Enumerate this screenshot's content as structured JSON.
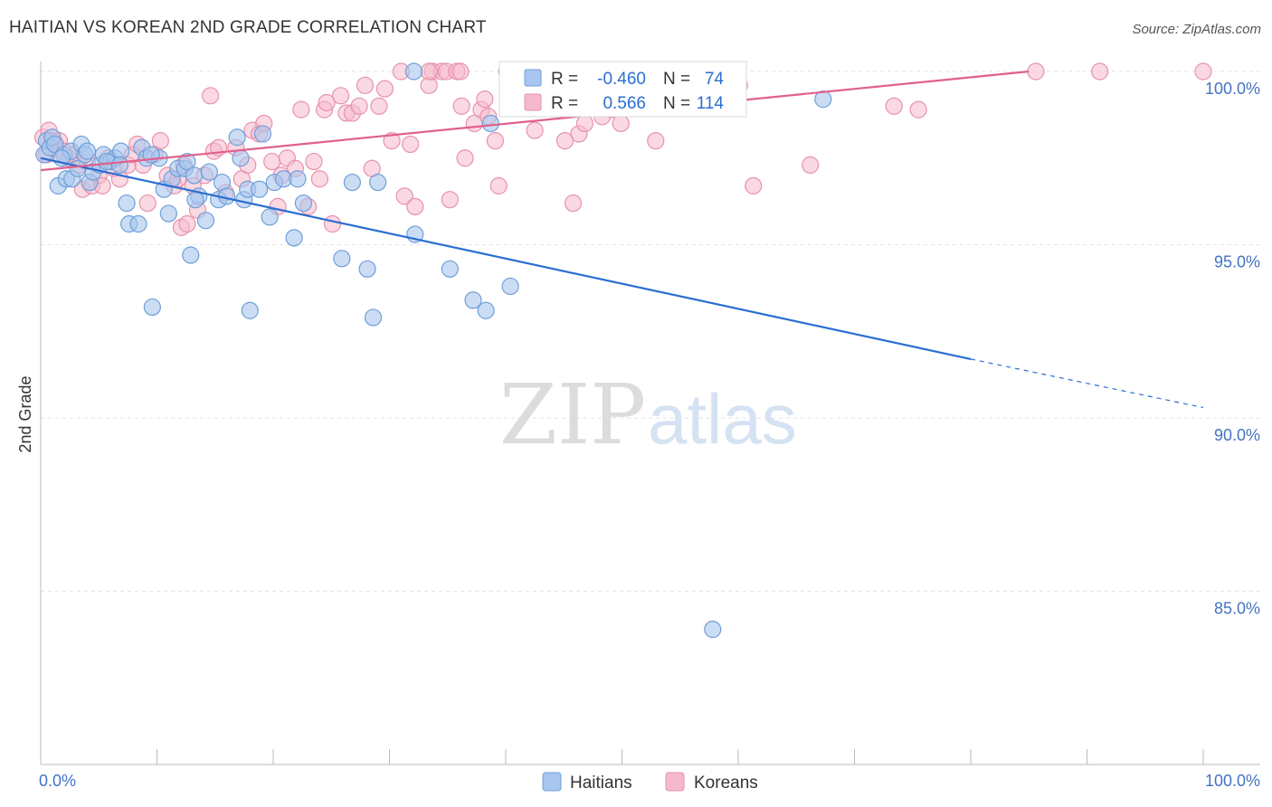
{
  "title": "HAITIAN VS KOREAN 2ND GRADE CORRELATION CHART",
  "source": "Source: ZipAtlas.com",
  "watermark": {
    "part1": "ZIP",
    "part2": "atlas"
  },
  "colors": {
    "haitian_fill": "#a8c6ef",
    "haitian_stroke": "#6f9fd8",
    "haitian_line": "#2a6fd1",
    "korean_fill": "#f6b9cc",
    "korean_stroke": "#e792ad",
    "korean_line": "#e0608d",
    "value_blue": "#2a6fd1",
    "grid": "#e2e2e2"
  },
  "legend_box": {
    "rows": [
      {
        "r_label": "R =",
        "r_value": "-0.460",
        "n_label": "N =",
        "n_value": "74"
      },
      {
        "r_label": "R =",
        "r_value": "0.566",
        "n_label": "N =",
        "n_value": "114"
      }
    ]
  },
  "bottom_legend": {
    "items": [
      "Haitians",
      "Koreans"
    ]
  },
  "chart_data": {
    "type": "scatter",
    "title": "HAITIAN VS KOREAN 2ND GRADE CORRELATION CHART",
    "xlabel": "",
    "ylabel": "2nd Grade",
    "xlim": [
      0,
      100
    ],
    "ylim": [
      80.3,
      101.5
    ],
    "x_tick_labels": [
      "0.0%",
      "100.0%"
    ],
    "y_ticks": [
      100,
      95,
      90,
      85
    ],
    "y_tick_labels": [
      "100.0%",
      "95.0%",
      "90.0%",
      "85.0%"
    ],
    "grid": true,
    "legend_position": "top-center",
    "series": [
      {
        "name": "Haitians",
        "r": -0.46,
        "n": 74,
        "trend": {
          "x0": 0,
          "y0": 97.5,
          "x1": 80,
          "y1": 91.7,
          "dash_to_x": 100,
          "dash_to_y": 90.3
        },
        "points": [
          [
            0.3,
            97.6
          ],
          [
            0.5,
            98.0
          ],
          [
            0.8,
            97.8
          ],
          [
            1.0,
            98.1
          ],
          [
            1.2,
            97.9
          ],
          [
            1.5,
            96.7
          ],
          [
            2.0,
            97.6
          ],
          [
            2.2,
            96.9
          ],
          [
            2.6,
            97.7
          ],
          [
            2.7,
            96.9
          ],
          [
            3.2,
            97.2
          ],
          [
            3.5,
            97.9
          ],
          [
            3.8,
            97.6
          ],
          [
            4.2,
            96.8
          ],
          [
            4.5,
            97.1
          ],
          [
            5.1,
            97.3
          ],
          [
            5.4,
            97.6
          ],
          [
            6.0,
            97.4
          ],
          [
            6.4,
            97.5
          ],
          [
            6.9,
            97.7
          ],
          [
            7.4,
            96.2
          ],
          [
            7.6,
            95.6
          ],
          [
            8.4,
            95.6
          ],
          [
            8.7,
            97.8
          ],
          [
            9.1,
            97.5
          ],
          [
            9.6,
            93.2
          ],
          [
            10.2,
            97.5
          ],
          [
            10.6,
            96.6
          ],
          [
            11.0,
            95.9
          ],
          [
            11.3,
            96.9
          ],
          [
            11.8,
            97.2
          ],
          [
            12.4,
            97.2
          ],
          [
            12.6,
            97.4
          ],
          [
            12.9,
            94.7
          ],
          [
            13.2,
            97.0
          ],
          [
            13.6,
            96.4
          ],
          [
            14.2,
            95.7
          ],
          [
            14.5,
            97.1
          ],
          [
            15.3,
            96.3
          ],
          [
            15.6,
            96.8
          ],
          [
            16.0,
            96.4
          ],
          [
            16.9,
            98.1
          ],
          [
            17.2,
            97.5
          ],
          [
            17.5,
            96.3
          ],
          [
            17.8,
            96.6
          ],
          [
            18.0,
            93.1
          ],
          [
            18.8,
            96.6
          ],
          [
            19.1,
            98.2
          ],
          [
            19.7,
            95.8
          ],
          [
            20.1,
            96.8
          ],
          [
            20.9,
            96.9
          ],
          [
            21.8,
            95.2
          ],
          [
            22.1,
            96.9
          ],
          [
            22.6,
            96.2
          ],
          [
            25.9,
            94.6
          ],
          [
            26.8,
            96.8
          ],
          [
            28.1,
            94.3
          ],
          [
            28.6,
            92.9
          ],
          [
            29.0,
            96.8
          ],
          [
            32.2,
            95.3
          ],
          [
            35.2,
            94.3
          ],
          [
            37.2,
            93.4
          ],
          [
            38.3,
            93.1
          ],
          [
            38.7,
            98.5
          ],
          [
            40.4,
            93.8
          ],
          [
            32.1,
            100.0
          ],
          [
            57.8,
            83.9
          ],
          [
            67.3,
            99.2
          ],
          [
            5.7,
            97.4
          ],
          [
            9.5,
            97.6
          ],
          [
            4.0,
            97.7
          ],
          [
            13.3,
            96.3
          ],
          [
            1.8,
            97.5
          ],
          [
            6.8,
            97.3
          ]
        ]
      },
      {
        "name": "Koreans",
        "r": 0.566,
        "n": 114,
        "trend": {
          "x0": 0,
          "y0": 97.15,
          "x1": 85,
          "y1": 100.0
        },
        "points": [
          [
            0.2,
            98.1
          ],
          [
            0.5,
            97.6
          ],
          [
            0.7,
            98.3
          ],
          [
            1.0,
            98.0
          ],
          [
            1.3,
            97.9
          ],
          [
            1.6,
            98.0
          ],
          [
            2.0,
            97.7
          ],
          [
            2.4,
            97.5
          ],
          [
            2.8,
            97.6
          ],
          [
            3.3,
            97.3
          ],
          [
            3.6,
            96.6
          ],
          [
            4.0,
            97.4
          ],
          [
            4.4,
            96.7
          ],
          [
            5.0,
            97.0
          ],
          [
            5.3,
            96.7
          ],
          [
            5.8,
            97.5
          ],
          [
            6.3,
            97.2
          ],
          [
            6.8,
            96.9
          ],
          [
            7.5,
            97.3
          ],
          [
            7.9,
            97.6
          ],
          [
            8.8,
            97.3
          ],
          [
            9.2,
            96.2
          ],
          [
            9.8,
            97.6
          ],
          [
            10.3,
            98.0
          ],
          [
            10.9,
            97.0
          ],
          [
            11.5,
            96.7
          ],
          [
            12.1,
            95.5
          ],
          [
            12.3,
            97.3
          ],
          [
            12.6,
            95.6
          ],
          [
            13.1,
            96.7
          ],
          [
            13.5,
            96.0
          ],
          [
            14.1,
            97.0
          ],
          [
            14.9,
            97.7
          ],
          [
            15.3,
            97.8
          ],
          [
            15.9,
            96.5
          ],
          [
            16.8,
            97.8
          ],
          [
            17.3,
            96.9
          ],
          [
            18.2,
            98.3
          ],
          [
            18.8,
            98.2
          ],
          [
            19.2,
            98.5
          ],
          [
            19.9,
            97.4
          ],
          [
            20.4,
            96.1
          ],
          [
            21.2,
            97.5
          ],
          [
            21.9,
            97.2
          ],
          [
            22.4,
            98.9
          ],
          [
            23.0,
            96.1
          ],
          [
            23.5,
            97.4
          ],
          [
            24.0,
            96.9
          ],
          [
            24.4,
            98.9
          ],
          [
            25.1,
            95.6
          ],
          [
            25.8,
            99.3
          ],
          [
            26.3,
            98.8
          ],
          [
            26.8,
            98.8
          ],
          [
            27.4,
            99.0
          ],
          [
            27.9,
            99.6
          ],
          [
            28.5,
            97.2
          ],
          [
            29.1,
            99.0
          ],
          [
            29.6,
            99.5
          ],
          [
            30.2,
            98.0
          ],
          [
            31.3,
            96.4
          ],
          [
            31.8,
            97.9
          ],
          [
            32.2,
            96.1
          ],
          [
            33.4,
            99.6
          ],
          [
            33.7,
            100.0
          ],
          [
            34.5,
            100.0
          ],
          [
            34.9,
            100.0
          ],
          [
            35.2,
            96.3
          ],
          [
            35.8,
            100.0
          ],
          [
            36.2,
            99.0
          ],
          [
            36.5,
            97.5
          ],
          [
            37.3,
            98.5
          ],
          [
            37.9,
            98.9
          ],
          [
            38.5,
            98.7
          ],
          [
            39.1,
            98.0
          ],
          [
            39.4,
            96.7
          ],
          [
            40.1,
            100.0
          ],
          [
            40.6,
            99.9
          ],
          [
            41.3,
            99.0
          ],
          [
            42.5,
            98.3
          ],
          [
            43.8,
            100.0
          ],
          [
            45.1,
            98.0
          ],
          [
            45.8,
            96.2
          ],
          [
            46.3,
            98.2
          ],
          [
            46.8,
            98.5
          ],
          [
            47.5,
            100.0
          ],
          [
            48.3,
            98.7
          ],
          [
            49.1,
            98.9
          ],
          [
            49.9,
            98.5
          ],
          [
            51.0,
            100.0
          ],
          [
            52.1,
            99.3
          ],
          [
            52.9,
            98.0
          ],
          [
            54.2,
            100.0
          ],
          [
            55.6,
            99.7
          ],
          [
            56.9,
            99.0
          ],
          [
            58.2,
            100.0
          ],
          [
            59.0,
            99.4
          ],
          [
            60.1,
            99.6
          ],
          [
            61.3,
            96.7
          ],
          [
            66.2,
            97.3
          ],
          [
            73.4,
            99.0
          ],
          [
            75.5,
            98.9
          ],
          [
            85.6,
            100.0
          ],
          [
            91.1,
            100.0
          ],
          [
            100,
            100.0
          ],
          [
            14.6,
            99.3
          ],
          [
            24.6,
            99.1
          ],
          [
            31.0,
            100.0
          ],
          [
            36.1,
            100.0
          ],
          [
            33.4,
            100.0
          ],
          [
            38.2,
            99.2
          ],
          [
            17.8,
            97.3
          ],
          [
            8.3,
            97.9
          ],
          [
            11.8,
            96.9
          ],
          [
            20.7,
            97.0
          ]
        ]
      }
    ]
  }
}
